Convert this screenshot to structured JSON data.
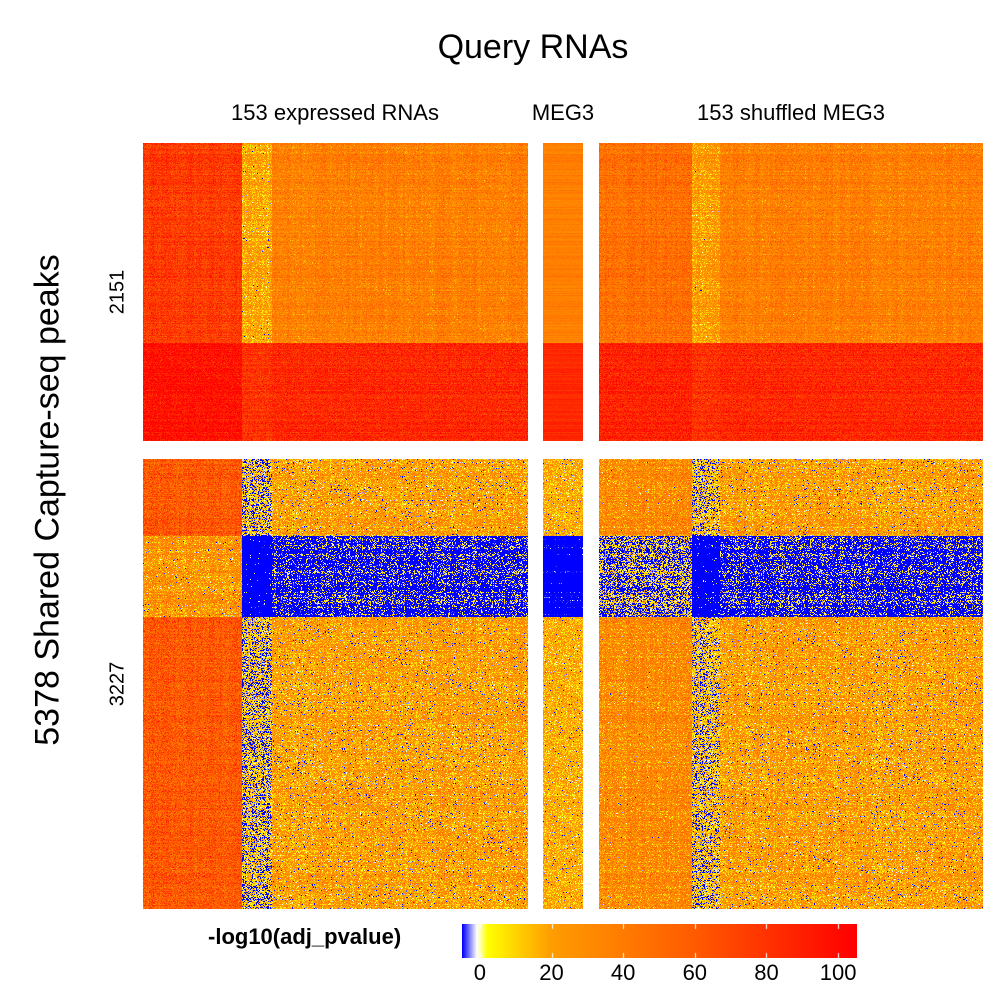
{
  "chart_data": {
    "type": "heatmap",
    "title": "Query RNAs",
    "ylabel": "5378 Shared Capture-seq peaks",
    "column_groups": [
      {
        "label": "153 expressed RNAs",
        "n_cols": 153
      },
      {
        "label": "MEG3",
        "n_cols": 1
      },
      {
        "label": "153 shuffled MEG3",
        "n_cols": 153
      }
    ],
    "row_groups": [
      {
        "label": "2151",
        "n_rows": 2151
      },
      {
        "label": "3227",
        "n_rows": 3227
      }
    ],
    "color_scale": {
      "title": "-log10(adj_pvalue)",
      "range": [
        -5,
        105
      ],
      "ticks": [
        0,
        20,
        40,
        60,
        80,
        100
      ],
      "stops": [
        {
          "value": -5,
          "color": "#0000ff"
        },
        {
          "value": -1,
          "color": "#ffffff"
        },
        {
          "value": 2,
          "color": "#ffff00"
        },
        {
          "value": 20,
          "color": "#ff9c00"
        },
        {
          "value": 60,
          "color": "#ff5a00"
        },
        {
          "value": 105,
          "color": "#ff0000"
        }
      ]
    },
    "patterns": {
      "2151": {
        "high_band_fraction": [
          0.67,
          1.0
        ],
        "strong_columns_fraction": [
          0.0,
          0.25
        ]
      },
      "3227": {
        "blue_band_fraction": [
          0.17,
          0.35
        ],
        "strong_columns_fraction": [
          0.0,
          0.25
        ]
      }
    }
  }
}
